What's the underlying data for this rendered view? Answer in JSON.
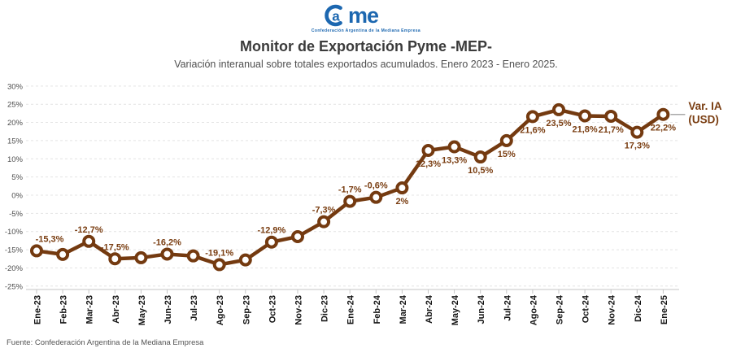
{
  "logo": {
    "a": "a",
    "me": "me",
    "caption": "Confederación Argentina de la Mediana Empresa",
    "blue": "#1c67b0"
  },
  "header": {
    "title": "Monitor de Exportación Pyme -MEP-",
    "subtitle": "Variación interanual sobre totales exportados acumulados. Enero 2023 - Enero 2025."
  },
  "footer": {
    "source": "Fuente: Confederación Argentina de la Mediana Empresa"
  },
  "colors": {
    "line": "#743a10",
    "marker_stroke": "#743a10",
    "point_label": "#7a3e12",
    "legend_text": "#7a3e12"
  },
  "chart_data": {
    "type": "line",
    "title": "Monitor de Exportación Pyme -MEP-",
    "subtitle": "Variación interanual sobre totales exportados acumulados. Enero 2023 - Enero 2025.",
    "series_name": "Var. IA (USD)",
    "legend_lines": [
      "Var. IA",
      "(USD)"
    ],
    "legend_position": "right of last point",
    "grid": "horizontal dotted",
    "ylim": [
      -25,
      30
    ],
    "ytick_step": 5,
    "ytick_suffix": "%",
    "categories": [
      "Ene-23",
      "Feb-23",
      "Mar-23",
      "Abr-23",
      "May-23",
      "Jun-23",
      "Jul-23",
      "Ago-23",
      "Sep-23",
      "Oct-23",
      "Nov-23",
      "Dic-23",
      "Ene-24",
      "Feb-24",
      "Mar-24",
      "Abr-24",
      "May-24",
      "Jun-24",
      "Jul-24",
      "Ago-24",
      "Sep-24",
      "Oct-24",
      "Nov-24",
      "Dic-24",
      "Ene-25"
    ],
    "values": [
      -15.3,
      -16.3,
      -12.7,
      -17.5,
      -17.2,
      -16.2,
      -16.7,
      -19.1,
      -17.8,
      -12.9,
      -11.4,
      -7.3,
      -1.7,
      -0.6,
      2,
      12.3,
      13.3,
      10.5,
      15,
      21.6,
      23.5,
      21.8,
      21.7,
      17.3,
      22.2
    ],
    "point_labels": [
      "-15,3%",
      null,
      "-12,7%",
      "-17,5%",
      null,
      "-16,2%",
      null,
      "-19,1%",
      null,
      "-12,9%",
      null,
      "-7,3%",
      "-1,7%",
      "-0,6%",
      "2%",
      "12,3%",
      "13,3%",
      "10,5%",
      "15%",
      "21,6%",
      "23,5%",
      "21,8%",
      "21,7%",
      "17,3%",
      "22,2%"
    ],
    "label_side": [
      "above",
      "above",
      "above",
      "above",
      "above",
      "above",
      "above",
      "above",
      "above",
      "above",
      "above",
      "above",
      "above",
      "above",
      "below",
      "below",
      "below",
      "below",
      "below",
      "below",
      "below",
      "below",
      "below",
      "below",
      "below"
    ],
    "label_dx": [
      16,
      0,
      0,
      0,
      0,
      0,
      0,
      0,
      0,
      0,
      0,
      0,
      0,
      0,
      0,
      0,
      0,
      0,
      0,
      0,
      0,
      0,
      0,
      0,
      0
    ]
  }
}
